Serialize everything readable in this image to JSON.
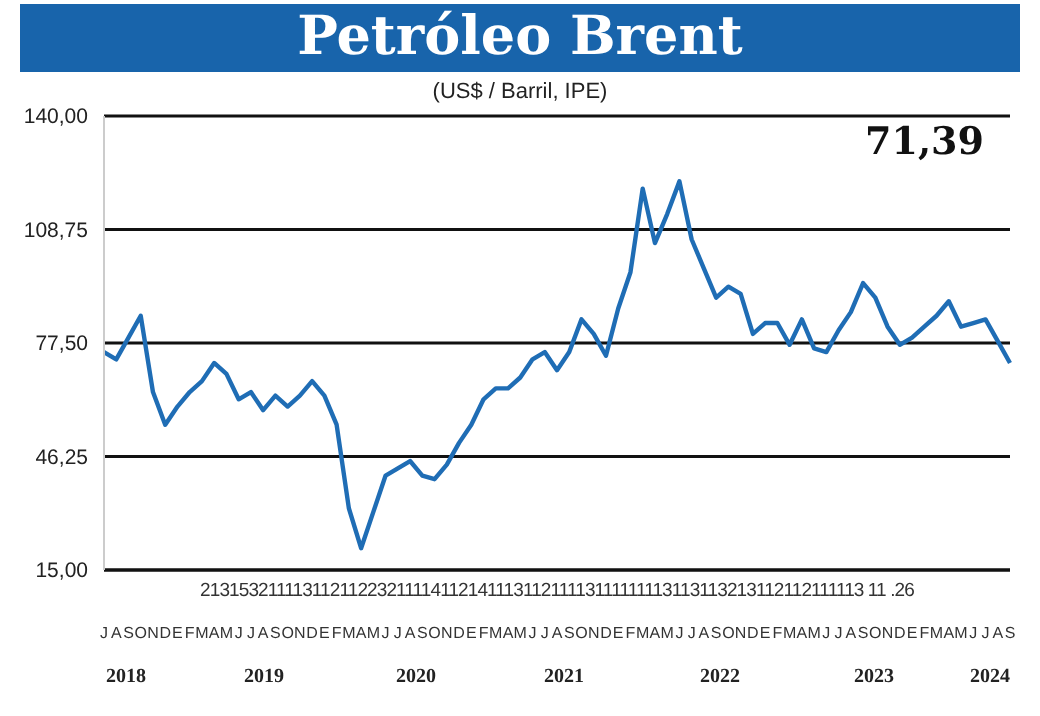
{
  "chart_data": {
    "type": "line",
    "title": "Petróleo Brent",
    "subtitle": "(US$ / Barril, IPE)",
    "annotations": [
      "71,39",
      "2131532111131121122321111411214111311211113111111113113113213112112111113 11 .26",
      "2018",
      "2019",
      "2020",
      "2021",
      "2022",
      "2023",
      "2024"
    ],
    "categories": [
      "J",
      "A",
      "S",
      "O",
      "N",
      "D",
      "E",
      "F",
      "M",
      "A",
      "M",
      "J",
      "J",
      "A",
      "S",
      "O",
      "N",
      "D",
      "E",
      "F",
      "M",
      "A",
      "M",
      "J",
      "J",
      "A",
      "S",
      "O",
      "N",
      "D",
      "E",
      "F",
      "M",
      "A",
      "M",
      "J",
      "J",
      "A",
      "S",
      "O",
      "N",
      "D",
      "E",
      "F",
      "M",
      "A",
      "M",
      "J",
      "J",
      "A",
      "S",
      "O",
      "N",
      "D",
      "E",
      "F",
      "M",
      "A",
      "M",
      "J",
      "J",
      "A",
      "S",
      "O",
      "N",
      "D",
      "E",
      "F",
      "M",
      "A",
      "M",
      "J",
      "J",
      "A",
      "S"
    ],
    "series": [
      {
        "color": "#1f6db5",
        "values": [
          75,
          73,
          79,
          85,
          64,
          55,
          60,
          64,
          67,
          72,
          69,
          62,
          64,
          59,
          63,
          60,
          63,
          67,
          63,
          55,
          32,
          21,
          31,
          41,
          43,
          45,
          41,
          40,
          44,
          50,
          55,
          62,
          65,
          65,
          68,
          73,
          75,
          70,
          75,
          84,
          80,
          74,
          87,
          97,
          120,
          105,
          113,
          122,
          106,
          98,
          90,
          93,
          91,
          80,
          83,
          83,
          77,
          84,
          76,
          75,
          81,
          86,
          94,
          90,
          82,
          77,
          79,
          82,
          85,
          89,
          82,
          83,
          84,
          78,
          72
        ]
      }
    ],
    "ylim": [
      15,
      140
    ],
    "yticks": [
      {
        "value": 15,
        "label": "15,00"
      },
      {
        "value": 46.25,
        "label": "46,25"
      },
      {
        "value": 77.5,
        "label": "77,50"
      },
      {
        "value": 108.75,
        "label": "108,75"
      },
      {
        "value": 140,
        "label": "140,00"
      }
    ],
    "grid": "y"
  }
}
